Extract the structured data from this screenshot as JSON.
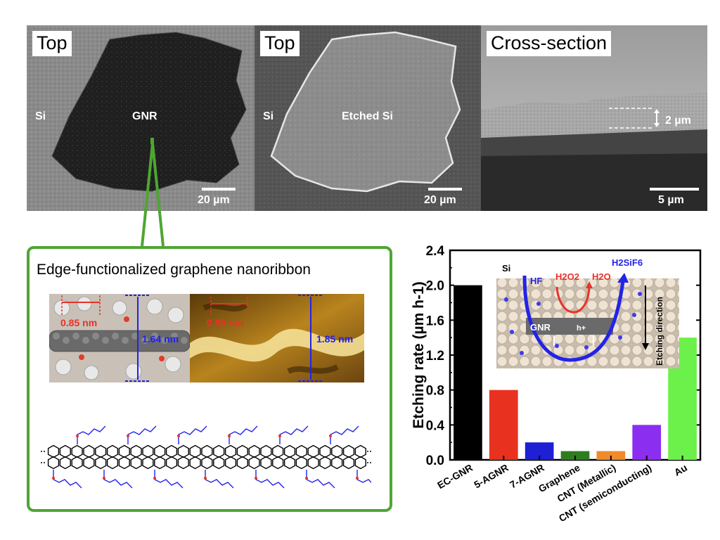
{
  "sem": {
    "panel1": {
      "label": "Top",
      "left_text": "Si",
      "center_text": "GNR",
      "scale": "20 µm"
    },
    "panel2": {
      "label": "Top",
      "left_text": "Si",
      "center_text": "Etched Si",
      "scale": "20 µm"
    },
    "panel3": {
      "label": "Cross-section",
      "thickness": "2 µm",
      "scale": "5 µm"
    }
  },
  "structure": {
    "title": "Edge-functionalized graphene nanoribbon",
    "model_width": "0.85 nm",
    "model_height": "1.64 nm",
    "stm_width": "0.85 nm",
    "stm_height": "1.85 nm"
  },
  "inset": {
    "si": "Si",
    "hf": "HF",
    "h2o2": "H2O2",
    "h2o": "H2O",
    "h2sif6": "H2SiF6",
    "gnr": "GNR",
    "hole": "h+",
    "direction": "Etching direction"
  },
  "colors": {
    "green_frame": "#4ea632",
    "red_dim": "#e8322a",
    "blue_dim": "#2323e6"
  },
  "chart_data": {
    "type": "bar",
    "ylabel": "Etching rate (µm h-1)",
    "ylim": [
      0,
      2.4
    ],
    "yticks": [
      "0.0",
      "0.4",
      "0.8",
      "1.2",
      "1.6",
      "2.0",
      "2.4"
    ],
    "categories": [
      "EC-GNR",
      "5-AGNR",
      "7-AGNR",
      "Graphene",
      "CNT (Metallic)",
      "CNT (semiconducting)",
      "Au"
    ],
    "values": [
      2.0,
      0.8,
      0.2,
      0.1,
      0.1,
      0.4,
      1.4
    ],
    "bar_colors": [
      "#000000",
      "#e8321f",
      "#1f1fd6",
      "#2d7d1f",
      "#f08a2a",
      "#8b2ef0",
      "#6cf04a"
    ]
  }
}
